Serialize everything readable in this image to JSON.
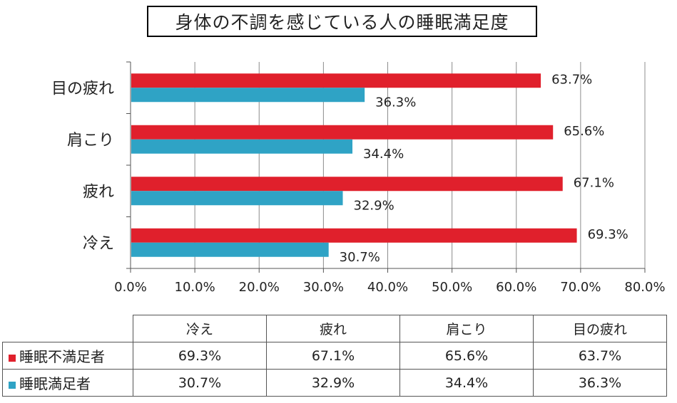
{
  "title": "身体の不調を感じている人の睡眠満足度",
  "colors": {
    "unsatisfied": "#E0202C",
    "satisfied": "#2FA3C5",
    "grid": "#8c8c8c"
  },
  "chart_data": {
    "type": "bar",
    "orientation": "horizontal",
    "categories": [
      "目の疲れ",
      "肩こり",
      "疲れ",
      "冷え"
    ],
    "series": [
      {
        "name": "睡眠不満足者",
        "values": [
          63.7,
          65.6,
          67.1,
          69.3
        ],
        "labels": [
          "63.7%",
          "65.6%",
          "67.1%",
          "69.3%"
        ]
      },
      {
        "name": "睡眠満足者",
        "values": [
          36.3,
          34.4,
          32.9,
          30.7
        ],
        "labels": [
          "36.3%",
          "34.4%",
          "32.9%",
          "30.7%"
        ]
      }
    ],
    "xlim": [
      0,
      80
    ],
    "xticks": [
      "0.0%",
      "10.0%",
      "20.0%",
      "30.0%",
      "40.0%",
      "50.0%",
      "60.0%",
      "70.0%",
      "80.0%"
    ],
    "grid": true
  },
  "table": {
    "headers": [
      "冷え",
      "疲れ",
      "肩こり",
      "目の疲れ"
    ],
    "rows": [
      {
        "label": "睡眠不満足者",
        "values": [
          "69.3%",
          "67.1%",
          "65.6%",
          "63.7%"
        ]
      },
      {
        "label": "睡眠満足者",
        "values": [
          "30.7%",
          "32.9%",
          "34.4%",
          "36.3%"
        ]
      }
    ]
  }
}
